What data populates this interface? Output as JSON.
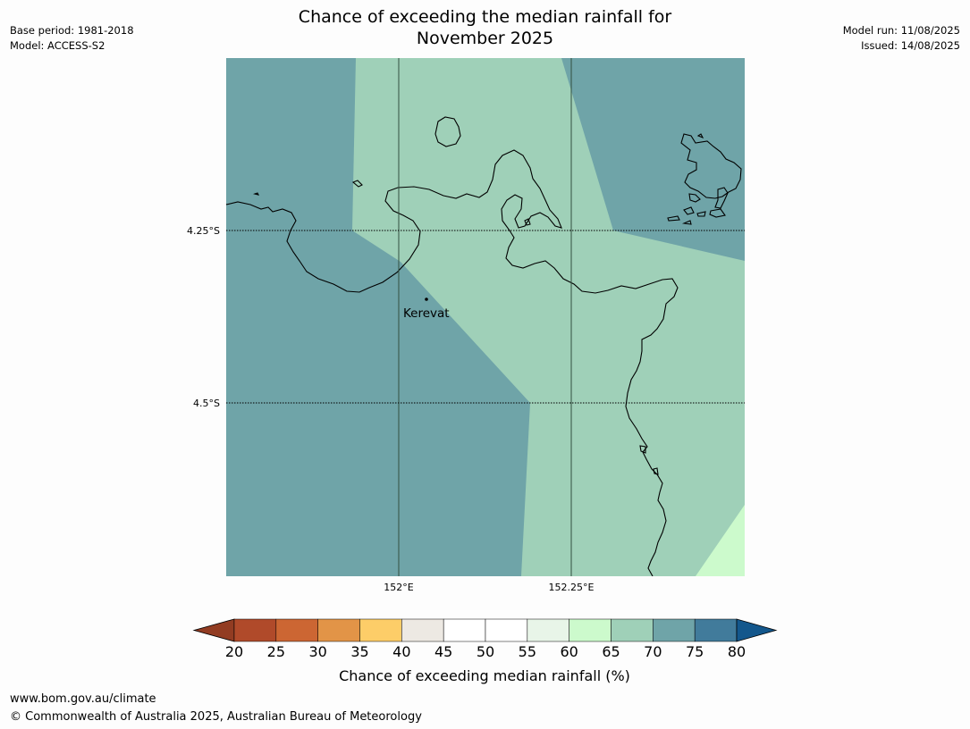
{
  "header": {
    "title_line1": "Chance of exceeding the median rainfall for",
    "title_line2": "November 2025",
    "base_period": "Base period: 1981-2018",
    "model": "Model: ACCESS-S2",
    "model_run": "Model run: 11/08/2025",
    "issued": "Issued: 14/08/2025"
  },
  "map": {
    "place_label": "Kerevat",
    "lat_labels": [
      "4.25°S",
      "4.5°S"
    ],
    "lon_labels": [
      "152°E",
      "152.25°E"
    ],
    "colors": {
      "class_70_75": "#6fa4a8",
      "class_65_70": "#9fd0b8",
      "class_60_65": "#ccfacc",
      "coastline": "#000000",
      "gridline": "#000000"
    }
  },
  "colorbar": {
    "label": "Chance of exceeding median rainfall (%)",
    "ticks": [
      "20",
      "25",
      "30",
      "35",
      "40",
      "45",
      "50",
      "55",
      "60",
      "65",
      "70",
      "75",
      "80"
    ],
    "colors": [
      "#b04a2a",
      "#cc6633",
      "#e29447",
      "#fdcd68",
      "#ede9e3",
      "#ffffff",
      "#ffffff",
      "#e8f5e8",
      "#ccfacc",
      "#9fd0b8",
      "#6fa4a8",
      "#417b9b"
    ],
    "extend_low_color": "#923c22",
    "extend_high_color": "#13578c"
  },
  "footer": {
    "url": "www.bom.gov.au/climate",
    "copyright": "© Commonwealth of Australia 2025, Australian Bureau of Meteorology"
  }
}
